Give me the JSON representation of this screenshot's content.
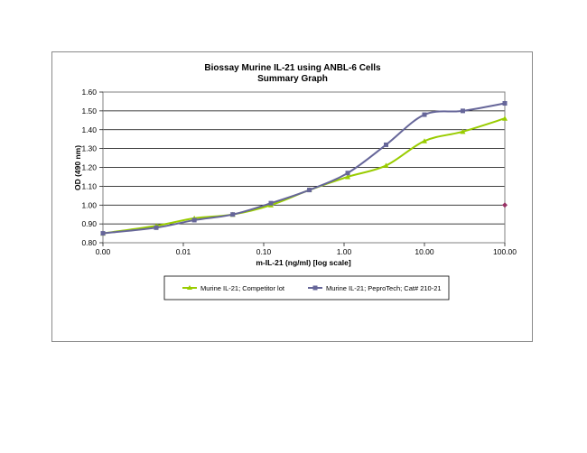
{
  "chart_data": {
    "type": "line",
    "title": "Biossay Murine IL-21 using ANBL-6 Cells",
    "subtitle": "Summary Graph",
    "xlabel": "m-IL-21 (ng/ml) [log scale]",
    "ylabel": "OD (490 nm)",
    "x_scale": "log",
    "xlim": [
      0.001,
      100
    ],
    "ylim": [
      0.8,
      1.6
    ],
    "x_tick_values": [
      0.001,
      0.01,
      0.1,
      1,
      10,
      100
    ],
    "x_tick_labels": [
      "0.00",
      "0.01",
      "0.10",
      "1.00",
      "10.00",
      "100.00"
    ],
    "y_tick_values": [
      0.8,
      0.9,
      1.0,
      1.1,
      1.2,
      1.3,
      1.4,
      1.5,
      1.6
    ],
    "y_tick_labels": [
      "0.80",
      "0.90",
      "1.00",
      "1.10",
      "1.20",
      "1.30",
      "1.40",
      "1.50",
      "1.60"
    ],
    "grid": "horizontal",
    "legend_position": "bottom",
    "series": [
      {
        "name": "Murine IL-21; Competitor lot",
        "color": "#99cc00",
        "marker": "triangle",
        "x": [
          0.001,
          0.0046,
          0.0137,
          0.0412,
          0.123,
          0.37,
          1.11,
          3.33,
          10,
          30,
          100
        ],
        "y": [
          0.85,
          0.89,
          0.93,
          0.95,
          1.0,
          1.08,
          1.15,
          1.21,
          1.34,
          1.39,
          1.46
        ]
      },
      {
        "name": "Murine IL-21; PeproTech; Cat# 210-21",
        "color": "#666699",
        "marker": "square",
        "x": [
          0.001,
          0.0046,
          0.0137,
          0.0412,
          0.123,
          0.37,
          1.11,
          3.33,
          10,
          30,
          100
        ],
        "y": [
          0.85,
          0.88,
          0.92,
          0.95,
          1.01,
          1.08,
          1.17,
          1.32,
          1.48,
          1.5,
          1.54
        ]
      }
    ],
    "extra_points": [
      {
        "x": 100,
        "y": 1.0,
        "color": "#993366",
        "marker": "diamond"
      }
    ]
  }
}
